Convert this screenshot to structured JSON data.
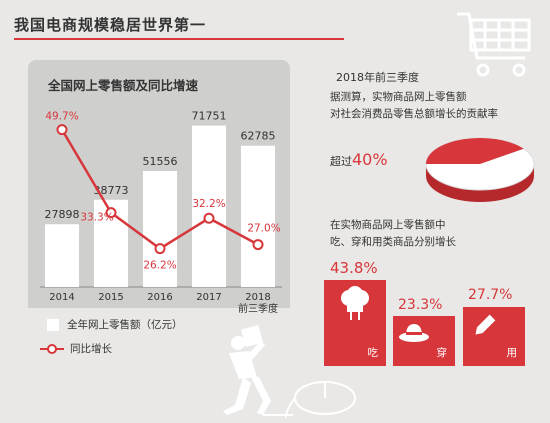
{
  "page": {
    "title": "我国电商规模稳居世界第一"
  },
  "chart_data": {
    "type": "bar",
    "title": "全国网上零售额及同比增速",
    "categories": [
      "2014",
      "2015",
      "2016",
      "2017",
      "2018\n前三季度"
    ],
    "series": [
      {
        "name": "全年网上零售额（亿元）",
        "type": "bar",
        "values": [
          27898,
          38773,
          51556,
          71751,
          62785
        ]
      },
      {
        "name": "同比增长",
        "type": "line",
        "values": [
          49.7,
          33.3,
          26.2,
          32.2,
          27.0
        ],
        "labels": [
          "49.7%",
          "33.3%",
          "26.2%",
          "32.2%",
          "27.0%"
        ]
      }
    ],
    "legend": [
      "全年网上零售额（亿元）",
      "同比增长"
    ],
    "legend_position": "bottom-left"
  },
  "right": {
    "year": "2018年前三季度",
    "desc_line1": "据测算，实物商品网上零售额",
    "desc_line2": "对社会消费品零售总额增长的贡献率",
    "over_label": "超过",
    "over_value": "40%",
    "pie_share": 0.4,
    "desc2_line1": "在实物商品网上零售额中",
    "desc2_line2": "吃、穿和用类商品分别增长",
    "categories": [
      {
        "pct": "43.8%",
        "label": "吃",
        "icon": "chef-hat-icon"
      },
      {
        "pct": "23.3%",
        "label": "穿",
        "icon": "hat-icon"
      },
      {
        "pct": "27.7%",
        "label": "用",
        "icon": "pencil-icon"
      }
    ]
  },
  "colors": {
    "accent": "#d7363b",
    "bar": "#ffffff",
    "panel": "#cfcfcd",
    "bg": "#e9e8e6"
  }
}
